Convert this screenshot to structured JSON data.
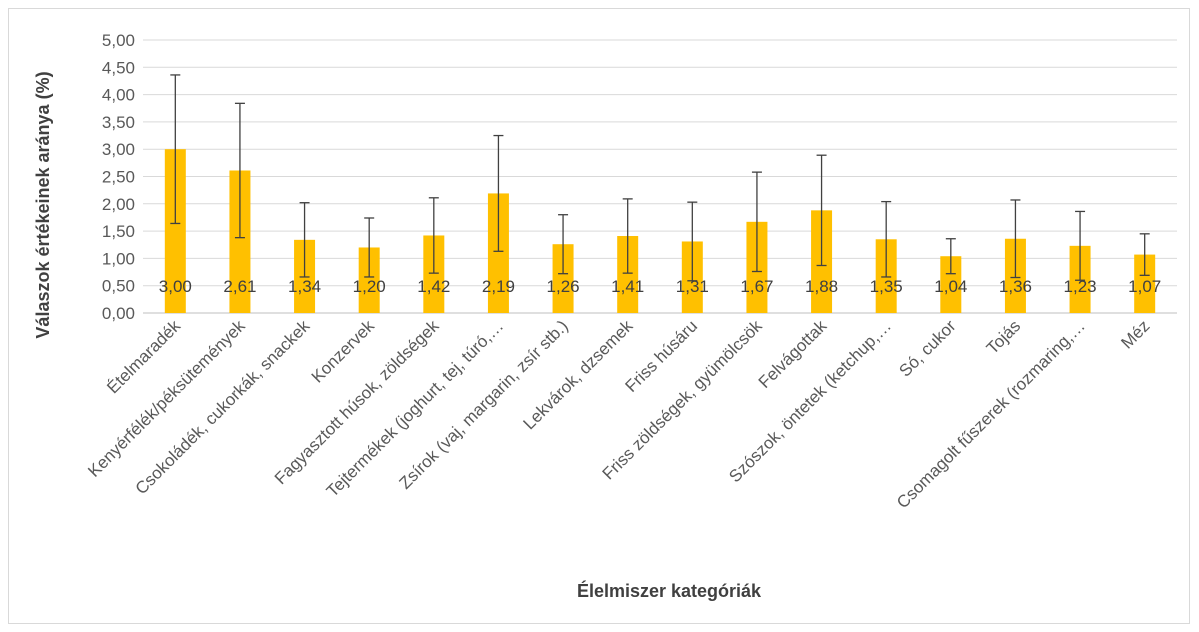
{
  "chart_data": {
    "type": "bar",
    "xlabel": "Élelmiszer kategóriák",
    "ylabel": "Válaszok értékeinek aránya (%)",
    "ylim": [
      0,
      5
    ],
    "yticks": [
      "0,00",
      "0,50",
      "1,00",
      "1,50",
      "2,00",
      "2,50",
      "3,00",
      "3,50",
      "4,00",
      "4,50",
      "5,00"
    ],
    "ytick_values": [
      0,
      0.5,
      1,
      1.5,
      2,
      2.5,
      3,
      3.5,
      4,
      4.5,
      5
    ],
    "grid": true,
    "bar_color": "#FFC000",
    "categories": [
      "Ételmaradék",
      "Kenyérfélék/péksütemények",
      "Csokoládék, cukorkák, snackek",
      "Konzervek",
      "Fagyasztott húsok, zöldségek",
      "Tejtermékek (joghurt, tej, túró,…",
      "Zsírok (vaj, margarin, zsír stb.)",
      "Lekvárok, dzsemek",
      "Friss húsáru",
      "Friss zöldségek, gyümölcsök",
      "Felvágottak",
      "Szószok, öntetek (ketchup,…",
      "Só, cukor",
      "Tojás",
      "Csomagolt fűszerek (rozmaring,…",
      "Méz"
    ],
    "values": [
      3.0,
      2.61,
      1.34,
      1.2,
      1.42,
      2.19,
      1.26,
      1.41,
      1.31,
      1.67,
      1.88,
      1.35,
      1.04,
      1.36,
      1.23,
      1.07
    ],
    "value_labels": [
      "3,00",
      "2,61",
      "1,34",
      "1,20",
      "1,42",
      "2,19",
      "1,26",
      "1,41",
      "1,31",
      "1,67",
      "1,88",
      "1,35",
      "1,04",
      "1,36",
      "1,23",
      "1,07"
    ],
    "error_bars": [
      1.36,
      1.23,
      0.68,
      0.54,
      0.69,
      1.06,
      0.54,
      0.68,
      0.72,
      0.91,
      1.01,
      0.69,
      0.32,
      0.71,
      0.63,
      0.38
    ]
  }
}
